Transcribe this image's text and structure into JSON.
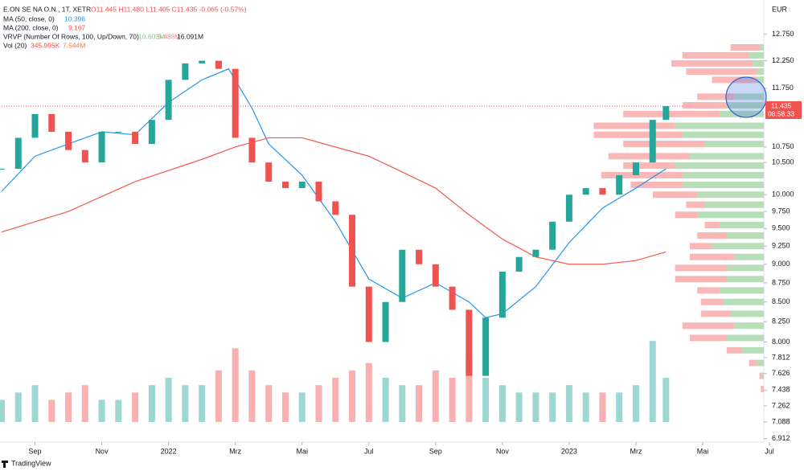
{
  "header": {
    "symbol": "E.ON SE NA O.N., 1T, XETR",
    "ohlc": "O11.445 H11.480 L11.405 C11.435 -0.065 (-0.57%)",
    "ma50_label": "MA (50, close, 0)",
    "ma50_value": "10.396",
    "ma200_label": "MA (200, close, 0)",
    "ma200_value": "9.167",
    "vrvp_label": "VRVP (Number Of Rows, 100, Up/Down, 70)",
    "vrvp_up": "10.603M",
    "vrvp_down": "5.488M",
    "vrvp_total": "16.091M",
    "vol_label": "Vol (20)",
    "vol_value": "345.995K",
    "vol_ma": "7.544M",
    "currency": "EUR",
    "brand": "TradingView",
    "last_price": "11.435",
    "countdown": "08:58:33"
  },
  "chart_data": {
    "type": "candlestick",
    "log_scale": true,
    "ylim": [
      6.9,
      13.3
    ],
    "yticks": [
      {
        "value": 12.75,
        "label": "12.750"
      },
      {
        "value": 12.25,
        "label": "12.250"
      },
      {
        "value": 11.75,
        "label": "11.750"
      },
      {
        "value": 10.75,
        "label": "10.750"
      },
      {
        "value": 10.5,
        "label": "10.500"
      },
      {
        "value": 10,
        "label": "10.000"
      },
      {
        "value": 9.75,
        "label": "9.750"
      },
      {
        "value": 9.5,
        "label": "9.500"
      },
      {
        "value": 9.25,
        "label": "9.250"
      },
      {
        "value": 9,
        "label": "9.000"
      },
      {
        "value": 8.75,
        "label": "8.750"
      },
      {
        "value": 8.5,
        "label": "8.500"
      },
      {
        "value": 8.25,
        "label": "8.250"
      },
      {
        "value": 8,
        "label": "8.000"
      },
      {
        "value": 7.812,
        "label": "7.812"
      },
      {
        "value": 7.626,
        "label": "7.626"
      },
      {
        "value": 7.438,
        "label": "7.438"
      },
      {
        "value": 7.262,
        "label": "7.262"
      },
      {
        "value": 7.088,
        "label": "7.088"
      },
      {
        "value": 6.912,
        "label": "6.912"
      }
    ],
    "xlim": [
      0,
      22.83
    ],
    "xticks": [
      {
        "value": 1,
        "label": "Sep"
      },
      {
        "value": 3,
        "label": "Nov"
      },
      {
        "value": 5,
        "label": "2022"
      },
      {
        "value": 7,
        "label": "Mrz"
      },
      {
        "value": 9,
        "label": "Mai"
      },
      {
        "value": 11,
        "label": "Jul"
      },
      {
        "value": 13,
        "label": "Sep"
      },
      {
        "value": 15,
        "label": "Nov"
      },
      {
        "value": 17,
        "label": "2023"
      },
      {
        "value": 19,
        "label": "Mrz"
      },
      {
        "value": 21,
        "label": "Mai"
      },
      {
        "value": 23,
        "label": "Jul"
      }
    ],
    "last_value": 11.435,
    "up_color": "#26a69a",
    "down_color": "#ef5350",
    "price": {
      "x": [
        0,
        0.5,
        1,
        1.5,
        2,
        2.5,
        3,
        3.5,
        4,
        4.5,
        5,
        5.5,
        6,
        6.5,
        7,
        7.5,
        8,
        8.5,
        9,
        9.5,
        10,
        10.5,
        11,
        11.5,
        12,
        12.5,
        13,
        13.5,
        14,
        14.5,
        15,
        15.5,
        16,
        16.5,
        17,
        17.5,
        18,
        18.5,
        19,
        19.5,
        19.9
      ],
      "values": [
        10.4,
        10.9,
        11.3,
        11.0,
        10.7,
        10.5,
        11.0,
        11.0,
        10.8,
        11.2,
        11.9,
        12.2,
        12.25,
        12.1,
        10.9,
        10.5,
        10.2,
        10.1,
        10.2,
        9.9,
        9.7,
        8.7,
        8.0,
        8.5,
        9.2,
        9.0,
        8.7,
        8.4,
        7.6,
        8.3,
        8.9,
        9.1,
        9.2,
        9.6,
        10.0,
        10.1,
        10.0,
        10.3,
        10.5,
        11.2,
        11.435
      ]
    },
    "volume": {
      "values": [
        3,
        4,
        5,
        3,
        4,
        5,
        3,
        3,
        4,
        5,
        6,
        5,
        5,
        7,
        10,
        7,
        5,
        4,
        4,
        5,
        6,
        7,
        8,
        6,
        5,
        5,
        7,
        6,
        9,
        6,
        5,
        4,
        4,
        4,
        5,
        4,
        4,
        4,
        5,
        11,
        6
      ],
      "ylim": [
        0,
        12
      ]
    },
    "series": [
      {
        "name": "MA (50, close, 0)",
        "color": "#2196f3",
        "x": [
          0,
          1,
          2,
          3,
          4,
          5,
          6,
          6.8,
          7.5,
          8,
          9,
          10,
          11,
          12,
          13,
          14,
          14.5,
          15,
          16,
          17,
          18,
          19,
          19.9
        ],
        "values": [
          10.05,
          10.6,
          10.8,
          11.0,
          10.95,
          11.5,
          11.9,
          12.1,
          11.4,
          10.8,
          10.3,
          9.6,
          8.8,
          8.55,
          8.75,
          8.5,
          8.3,
          8.35,
          8.7,
          9.3,
          9.8,
          10.1,
          10.4
        ]
      },
      {
        "name": "MA (200, close, 0)",
        "color": "#f05a4f",
        "x": [
          0,
          2,
          4,
          6,
          7,
          8,
          9,
          11,
          12,
          13,
          14,
          15,
          16,
          17,
          18,
          19,
          19.9
        ],
        "values": [
          9.45,
          9.75,
          10.2,
          10.55,
          10.75,
          10.9,
          10.9,
          10.6,
          10.35,
          10.1,
          9.7,
          9.35,
          9.1,
          9.0,
          9.0,
          9.05,
          9.17
        ]
      }
    ],
    "profile": {
      "prices": [
        12.5,
        12.35,
        12.2,
        12.05,
        11.9,
        11.6,
        11.45,
        11.3,
        11.1,
        10.95,
        10.8,
        10.6,
        10.45,
        10.3,
        10.15,
        10.0,
        9.85,
        9.7,
        9.55,
        9.4,
        9.25,
        9.1,
        8.95,
        8.8,
        8.65,
        8.5,
        8.35,
        8.2,
        8.05,
        7.9,
        7.75,
        7.6,
        7.45
      ],
      "up": [
        5,
        20,
        15,
        10,
        10,
        40,
        50,
        60,
        120,
        110,
        80,
        100,
        120,
        110,
        110,
        90,
        80,
        90,
        60,
        50,
        70,
        40,
        50,
        50,
        60,
        55,
        45,
        40,
        50,
        30,
        10,
        3,
        1
      ],
      "down": [
        40,
        90,
        110,
        95,
        60,
        50,
        60,
        130,
        110,
        120,
        110,
        110,
        70,
        110,
        70,
        60,
        25,
        30,
        20,
        40,
        30,
        60,
        70,
        70,
        30,
        30,
        40,
        70,
        50,
        20,
        10,
        3,
        3
      ],
      "up_color": "#a5d6a7",
      "down_color": "#f8a5a5",
      "max": 250
    }
  }
}
